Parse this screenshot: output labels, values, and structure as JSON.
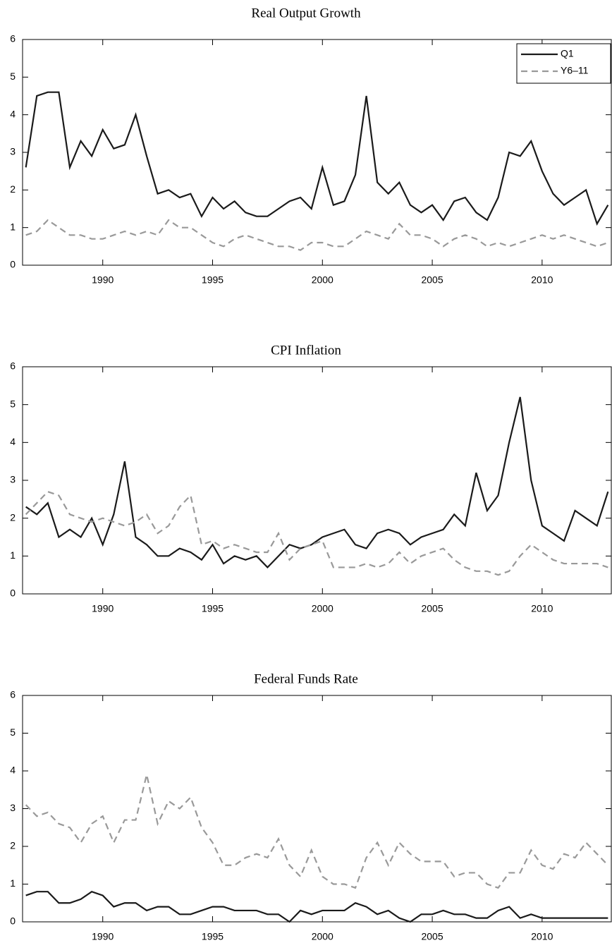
{
  "chart_data": [
    {
      "type": "line",
      "title": "Real Output Growth",
      "legend": "upper right",
      "x": [
        1986.5,
        1987,
        1987.5,
        1988,
        1988.5,
        1989,
        1989.5,
        1990,
        1990.5,
        1991,
        1991.5,
        1992,
        1992.5,
        1993,
        1993.5,
        1994,
        1994.5,
        1995,
        1995.5,
        1996,
        1996.5,
        1997,
        1997.5,
        1998,
        1998.5,
        1999,
        1999.5,
        2000,
        2000.5,
        2001,
        2001.5,
        2002,
        2002.5,
        2003,
        2003.5,
        2004,
        2004.5,
        2005,
        2005.5,
        2006,
        2006.5,
        2007,
        2007.5,
        2008,
        2008.5,
        2009,
        2009.5,
        2010,
        2010.5,
        2011,
        2011.5,
        2012,
        2012.5,
        2013
      ],
      "series": [
        {
          "name": "Q1",
          "color": "#1a1a1a",
          "line_style": "solid",
          "values": [
            2.6,
            4.5,
            4.6,
            4.6,
            2.6,
            3.3,
            2.9,
            3.6,
            3.1,
            3.2,
            4.0,
            2.9,
            1.9,
            2.0,
            1.8,
            1.9,
            1.3,
            1.8,
            1.5,
            1.7,
            1.4,
            1.3,
            1.3,
            1.5,
            1.7,
            1.8,
            1.5,
            2.6,
            1.6,
            1.7,
            2.4,
            4.5,
            2.2,
            1.9,
            2.2,
            1.6,
            1.4,
            1.6,
            1.2,
            1.7,
            1.8,
            1.4,
            1.2,
            1.8,
            3.0,
            2.9,
            3.3,
            2.5,
            1.9,
            1.6,
            1.8,
            2.0,
            1.1,
            1.6
          ]
        },
        {
          "name": "Y6–11",
          "color": "#999999",
          "line_style": "dashed",
          "values": [
            0.8,
            0.9,
            1.2,
            1.0,
            0.8,
            0.8,
            0.7,
            0.7,
            0.8,
            0.9,
            0.8,
            0.9,
            0.8,
            1.2,
            1.0,
            1.0,
            0.8,
            0.6,
            0.5,
            0.7,
            0.8,
            0.7,
            0.6,
            0.5,
            0.5,
            0.4,
            0.6,
            0.6,
            0.5,
            0.5,
            0.7,
            0.9,
            0.8,
            0.7,
            1.1,
            0.8,
            0.8,
            0.7,
            0.5,
            0.7,
            0.8,
            0.7,
            0.5,
            0.6,
            0.5,
            0.6,
            0.7,
            0.8,
            0.7,
            0.8,
            0.7,
            0.6,
            0.5,
            0.6
          ]
        }
      ],
      "xlim": [
        1986.35,
        2013.15
      ],
      "xticks": [
        1990,
        1995,
        2000,
        2005,
        2010
      ],
      "ylim": [
        0,
        6
      ],
      "yticks": [
        0,
        1,
        2,
        3,
        4,
        5,
        6
      ]
    },
    {
      "type": "line",
      "title": "CPI Inflation",
      "x": [
        1986.5,
        1987,
        1987.5,
        1988,
        1988.5,
        1989,
        1989.5,
        1990,
        1990.5,
        1991,
        1991.5,
        1992,
        1992.5,
        1993,
        1993.5,
        1994,
        1994.5,
        1995,
        1995.5,
        1996,
        1996.5,
        1997,
        1997.5,
        1998,
        1998.5,
        1999,
        1999.5,
        2000,
        2000.5,
        2001,
        2001.5,
        2002,
        2002.5,
        2003,
        2003.5,
        2004,
        2004.5,
        2005,
        2005.5,
        2006,
        2006.5,
        2007,
        2007.5,
        2008,
        2008.5,
        2009,
        2009.5,
        2010,
        2010.5,
        2011,
        2011.5,
        2012,
        2012.5,
        2013
      ],
      "series": [
        {
          "color": "#1a1a1a",
          "line_style": "solid",
          "values": [
            2.3,
            2.1,
            2.4,
            1.5,
            1.7,
            1.5,
            2.0,
            1.3,
            2.1,
            3.5,
            1.5,
            1.3,
            1.0,
            1.0,
            1.2,
            1.1,
            0.9,
            1.3,
            0.8,
            1.0,
            0.9,
            1.0,
            0.7,
            1.0,
            1.3,
            1.2,
            1.3,
            1.5,
            1.6,
            1.7,
            1.3,
            1.2,
            1.6,
            1.7,
            1.6,
            1.3,
            1.5,
            1.6,
            1.7,
            2.1,
            1.8,
            3.2,
            2.2,
            2.6,
            4.0,
            5.2,
            3.0,
            1.8,
            1.6,
            1.4,
            2.2,
            2.0,
            1.8,
            2.7
          ]
        },
        {
          "color": "#999999",
          "line_style": "dashed",
          "values": [
            2.1,
            2.4,
            2.7,
            2.6,
            2.1,
            2.0,
            1.9,
            2.0,
            1.9,
            1.8,
            1.9,
            2.1,
            1.6,
            1.8,
            2.3,
            2.6,
            1.3,
            1.4,
            1.2,
            1.3,
            1.2,
            1.1,
            1.1,
            1.6,
            0.9,
            1.2,
            1.3,
            1.4,
            0.7,
            0.7,
            0.7,
            0.8,
            0.7,
            0.8,
            1.1,
            0.8,
            1.0,
            1.1,
            1.2,
            0.9,
            0.7,
            0.6,
            0.6,
            0.5,
            0.6,
            1.0,
            1.3,
            1.1,
            0.9,
            0.8,
            0.8,
            0.8,
            0.8,
            0.7
          ]
        }
      ],
      "xlim": [
        1986.35,
        2013.15
      ],
      "xticks": [
        1990,
        1995,
        2000,
        2005,
        2010
      ],
      "ylim": [
        0,
        6
      ],
      "yticks": [
        0,
        1,
        2,
        3,
        4,
        5,
        6
      ]
    },
    {
      "type": "line",
      "title": "Federal Funds Rate",
      "x": [
        1986.5,
        1987,
        1987.5,
        1988,
        1988.5,
        1989,
        1989.5,
        1990,
        1990.5,
        1991,
        1991.5,
        1992,
        1992.5,
        1993,
        1993.5,
        1994,
        1994.5,
        1995,
        1995.5,
        1996,
        1996.5,
        1997,
        1997.5,
        1998,
        1998.5,
        1999,
        1999.5,
        2000,
        2000.5,
        2001,
        2001.5,
        2002,
        2002.5,
        2003,
        2003.5,
        2004,
        2004.5,
        2005,
        2005.5,
        2006,
        2006.5,
        2007,
        2007.5,
        2008,
        2008.5,
        2009,
        2009.5,
        2010,
        2010.5,
        2011,
        2011.5,
        2012,
        2012.5,
        2013
      ],
      "series": [
        {
          "color": "#1a1a1a",
          "line_style": "solid",
          "values": [
            0.7,
            0.8,
            0.8,
            0.5,
            0.5,
            0.6,
            0.8,
            0.7,
            0.4,
            0.5,
            0.5,
            0.3,
            0.4,
            0.4,
            0.2,
            0.2,
            0.3,
            0.4,
            0.4,
            0.3,
            0.3,
            0.3,
            0.2,
            0.2,
            0.0,
            0.3,
            0.2,
            0.3,
            0.3,
            0.3,
            0.5,
            0.4,
            0.2,
            0.3,
            0.1,
            0.0,
            0.2,
            0.2,
            0.3,
            0.2,
            0.2,
            0.1,
            0.1,
            0.3,
            0.4,
            0.1,
            0.2,
            0.1,
            0.1,
            0.1,
            0.1,
            0.1,
            0.1,
            0.1
          ]
        },
        {
          "color": "#999999",
          "line_style": "dashed",
          "values": [
            3.1,
            2.8,
            2.9,
            2.6,
            2.5,
            2.1,
            2.6,
            2.8,
            2.1,
            2.7,
            2.7,
            3.9,
            2.6,
            3.2,
            3.0,
            3.3,
            2.5,
            2.1,
            1.5,
            1.5,
            1.7,
            1.8,
            1.7,
            2.2,
            1.5,
            1.2,
            1.9,
            1.2,
            1.0,
            1.0,
            0.9,
            1.7,
            2.1,
            1.5,
            2.1,
            1.8,
            1.6,
            1.6,
            1.6,
            1.2,
            1.3,
            1.3,
            1.0,
            0.9,
            1.3,
            1.3,
            1.9,
            1.5,
            1.4,
            1.8,
            1.7,
            2.1,
            1.8,
            1.5
          ]
        }
      ],
      "xlim": [
        1986.35,
        2013.15
      ],
      "xticks": [
        1990,
        1995,
        2000,
        2005,
        2010
      ],
      "ylim": [
        0,
        6
      ],
      "yticks": [
        0,
        1,
        2,
        3,
        4,
        5,
        6
      ]
    }
  ]
}
